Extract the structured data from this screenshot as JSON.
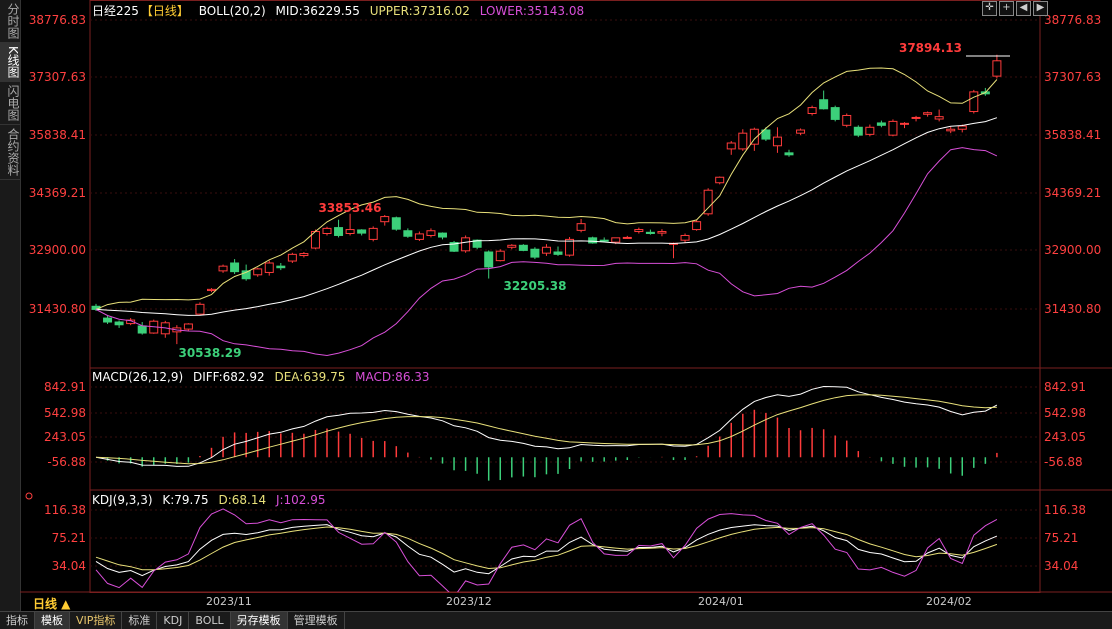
{
  "sidebar": [
    "分时图",
    "K线图",
    "闪电图",
    "合约资料"
  ],
  "sidebar_active": 1,
  "main_info": {
    "name": "日经225",
    "period": "【日线】",
    "boll": "BOLL(20,2)",
    "mid": "MID:36229.55",
    "upper": "UPPER:37316.02",
    "lower": "LOWER:35143.08"
  },
  "macd_info": {
    "name": "MACD(26,12,9)",
    "diff": "DIFF:682.92",
    "dea": "DEA:639.75",
    "macd": "MACD:86.33"
  },
  "kdj_info": {
    "name": "KDJ(9,3,3)",
    "k": "K:79.75",
    "d": "D:68.14",
    "j": "J:102.95"
  },
  "main_axis": [
    "38776.83",
    "37307.63",
    "35838.41",
    "34369.21",
    "32900.00",
    "31430.80"
  ],
  "macd_axis": [
    "842.91",
    "542.98",
    "243.05",
    "-56.88"
  ],
  "kdj_axis": [
    "116.38",
    "75.21",
    "34.04"
  ],
  "annotations": {
    "high": "37894.13",
    "mid_high": "33853.46",
    "mid_low": "32205.38",
    "low": "30538.29"
  },
  "x_labels": [
    "2023/11",
    "2023/12",
    "2024/01",
    "2024/02"
  ],
  "period_label": "日线 ▲",
  "bottom_tabs": [
    "指标",
    "模板",
    "VIP指标",
    "标准",
    "KDJ",
    "BOLL",
    "另存模板",
    "管理模板"
  ],
  "bottom_active": [
    1,
    6
  ],
  "colors": {
    "up": "#ff3b3b",
    "down": "#3cd07a",
    "upper": "#e8e07a",
    "mid": "#ffffff",
    "lower": "#d84fd8"
  },
  "chart_data": {
    "type": "candlestick",
    "candles": [
      [
        31500,
        31560,
        31380,
        31420
      ],
      [
        31200,
        31260,
        31050,
        31100
      ],
      [
        31100,
        31140,
        30950,
        31030
      ],
      [
        31060,
        31200,
        31020,
        31150
      ],
      [
        31000,
        31100,
        30780,
        30820
      ],
      [
        30820,
        31160,
        30800,
        31120
      ],
      [
        30800,
        31130,
        30700,
        31080
      ],
      [
        30850,
        31020,
        30538,
        30950
      ],
      [
        30920,
        31070,
        30870,
        31050
      ],
      [
        31300,
        31600,
        31280,
        31550
      ],
      [
        31900,
        31960,
        31860,
        31930
      ],
      [
        32400,
        32560,
        32350,
        32520
      ],
      [
        32600,
        32700,
        32320,
        32380
      ],
      [
        32400,
        32560,
        32150,
        32200
      ],
      [
        32300,
        32480,
        32250,
        32450
      ],
      [
        32360,
        32660,
        32280,
        32600
      ],
      [
        32520,
        32600,
        32420,
        32480
      ],
      [
        32650,
        32860,
        32600,
        32820
      ],
      [
        32790,
        32880,
        32740,
        32840
      ],
      [
        32980,
        33450,
        32950,
        33400
      ],
      [
        33350,
        33520,
        33300,
        33480
      ],
      [
        33500,
        33700,
        33250,
        33300
      ],
      [
        33350,
        33853,
        33300,
        33450
      ],
      [
        33440,
        33460,
        33300,
        33360
      ],
      [
        33200,
        33530,
        33150,
        33480
      ],
      [
        33650,
        33820,
        33550,
        33780
      ],
      [
        33750,
        33780,
        33420,
        33460
      ],
      [
        33420,
        33480,
        33240,
        33280
      ],
      [
        33200,
        33400,
        33160,
        33340
      ],
      [
        33300,
        33480,
        33250,
        33420
      ],
      [
        33360,
        33380,
        33200,
        33260
      ],
      [
        33120,
        33160,
        32880,
        32900
      ],
      [
        32910,
        33300,
        32860,
        33240
      ],
      [
        33180,
        33200,
        32950,
        33000
      ],
      [
        32880,
        32920,
        32205,
        32500
      ],
      [
        32660,
        32950,
        32640,
        32900
      ],
      [
        33000,
        33080,
        32950,
        33050
      ],
      [
        33050,
        33080,
        32900,
        32920
      ],
      [
        32950,
        33000,
        32700,
        32750
      ],
      [
        32850,
        33080,
        32780,
        33000
      ],
      [
        32880,
        33020,
        32780,
        32820
      ],
      [
        32800,
        33260,
        32760,
        33200
      ],
      [
        33430,
        33720,
        33380,
        33600
      ],
      [
        33240,
        33270,
        33090,
        33110
      ],
      [
        33180,
        33250,
        33140,
        33160
      ],
      [
        33130,
        33200,
        33080,
        33240
      ],
      [
        33250,
        33290,
        33220,
        33250
      ],
      [
        33400,
        33500,
        33350,
        33450
      ],
      [
        33380,
        33450,
        33320,
        33350
      ],
      [
        33360,
        33460,
        33280,
        33400
      ],
      [
        33080,
        33120,
        32720,
        33100
      ],
      [
        33180,
        33350,
        33120,
        33300
      ],
      [
        33450,
        33700,
        33420,
        33650
      ],
      [
        33850,
        34500,
        33800,
        34450
      ],
      [
        34640,
        34800,
        34600,
        34780
      ],
      [
        35500,
        35700,
        35350,
        35650
      ],
      [
        35500,
        36000,
        35450,
        35900
      ],
      [
        35620,
        36040,
        35450,
        36000
      ],
      [
        35980,
        36050,
        35700,
        35750
      ],
      [
        35580,
        36050,
        35400,
        35800
      ],
      [
        35400,
        35480,
        35300,
        35350
      ],
      [
        35900,
        36020,
        35850,
        35980
      ],
      [
        36400,
        36600,
        36350,
        36550
      ],
      [
        36750,
        36984,
        36500,
        36520
      ],
      [
        36550,
        36600,
        36200,
        36250
      ],
      [
        36100,
        36400,
        36050,
        36350
      ],
      [
        36050,
        36100,
        35800,
        35850
      ],
      [
        35870,
        36120,
        35820,
        36050
      ],
      [
        36160,
        36220,
        36050,
        36100
      ],
      [
        35850,
        36250,
        35820,
        36200
      ],
      [
        36130,
        36180,
        36030,
        36150
      ],
      [
        36280,
        36340,
        36200,
        36300
      ],
      [
        36380,
        36450,
        36320,
        36420
      ],
      [
        36260,
        36500,
        36200,
        36320
      ],
      [
        35960,
        36060,
        35900,
        36000
      ],
      [
        36000,
        36120,
        35920,
        36080
      ],
      [
        36450,
        37000,
        36400,
        36950
      ],
      [
        36950,
        37050,
        36850,
        36900
      ],
      [
        37350,
        37894,
        37290,
        37740
      ]
    ]
  }
}
